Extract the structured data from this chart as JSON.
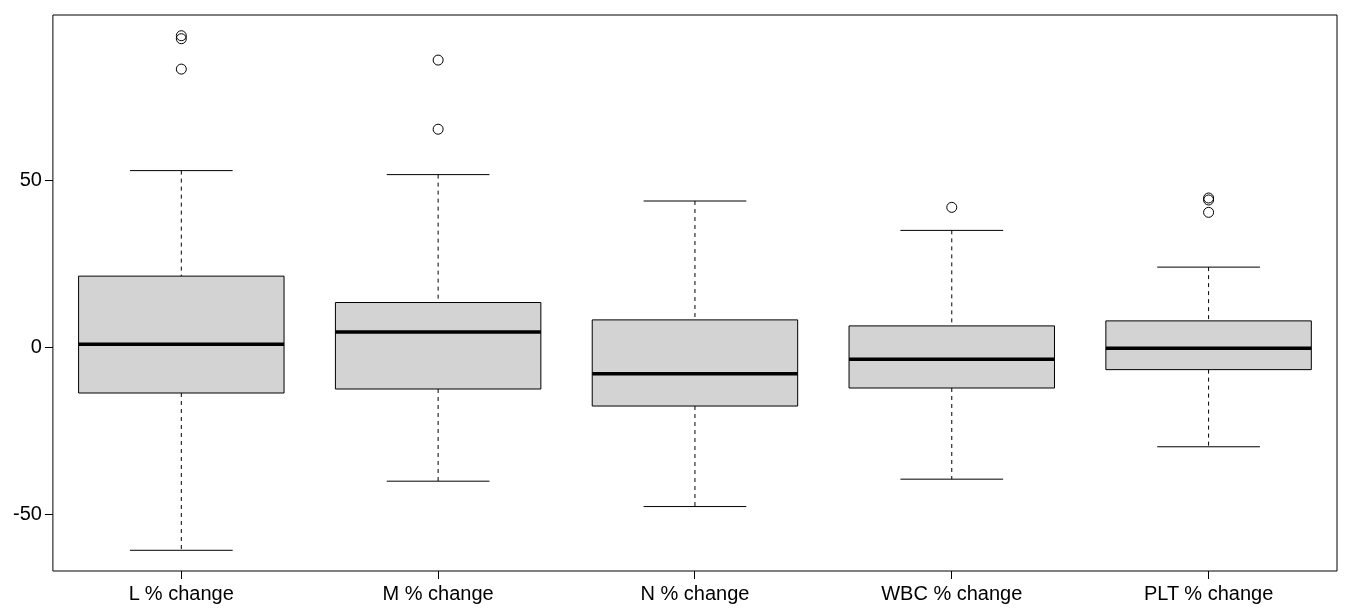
{
  "chart_data": {
    "type": "box",
    "categories": [
      "L % change",
      "M % change",
      "N % change",
      "WBC % change",
      "PLT % change"
    ],
    "color": "#d3d3d3",
    "boxes": [
      {
        "low": -60.8,
        "q1": -13.7,
        "median": 0.9,
        "q3": 21.3,
        "high": 52.9,
        "outliers": [
          93.3,
          92.4,
          83.3
        ]
      },
      {
        "low": -40.1,
        "q1": -12.5,
        "median": 4.6,
        "q3": 13.4,
        "high": 51.7,
        "outliers": [
          86,
          65.3
        ]
      },
      {
        "low": -47.7,
        "q1": -17.6,
        "median": -7.9,
        "q3": 8.2,
        "high": 43.8
      },
      {
        "low": -39.5,
        "q1": -12.2,
        "median": -3.6,
        "q3": 6.4,
        "high": 35,
        "outliers": [
          41.9
        ]
      },
      {
        "low": -29.8,
        "q1": -6.7,
        "median": -0.3,
        "q3": 7.9,
        "high": 24,
        "outliers": [
          44.7,
          44.1,
          40.4
        ]
      }
    ],
    "ylim": [
      -67,
      99.5
    ],
    "yticks": [
      -50,
      0,
      50
    ],
    "grid": false,
    "legend": false
  }
}
